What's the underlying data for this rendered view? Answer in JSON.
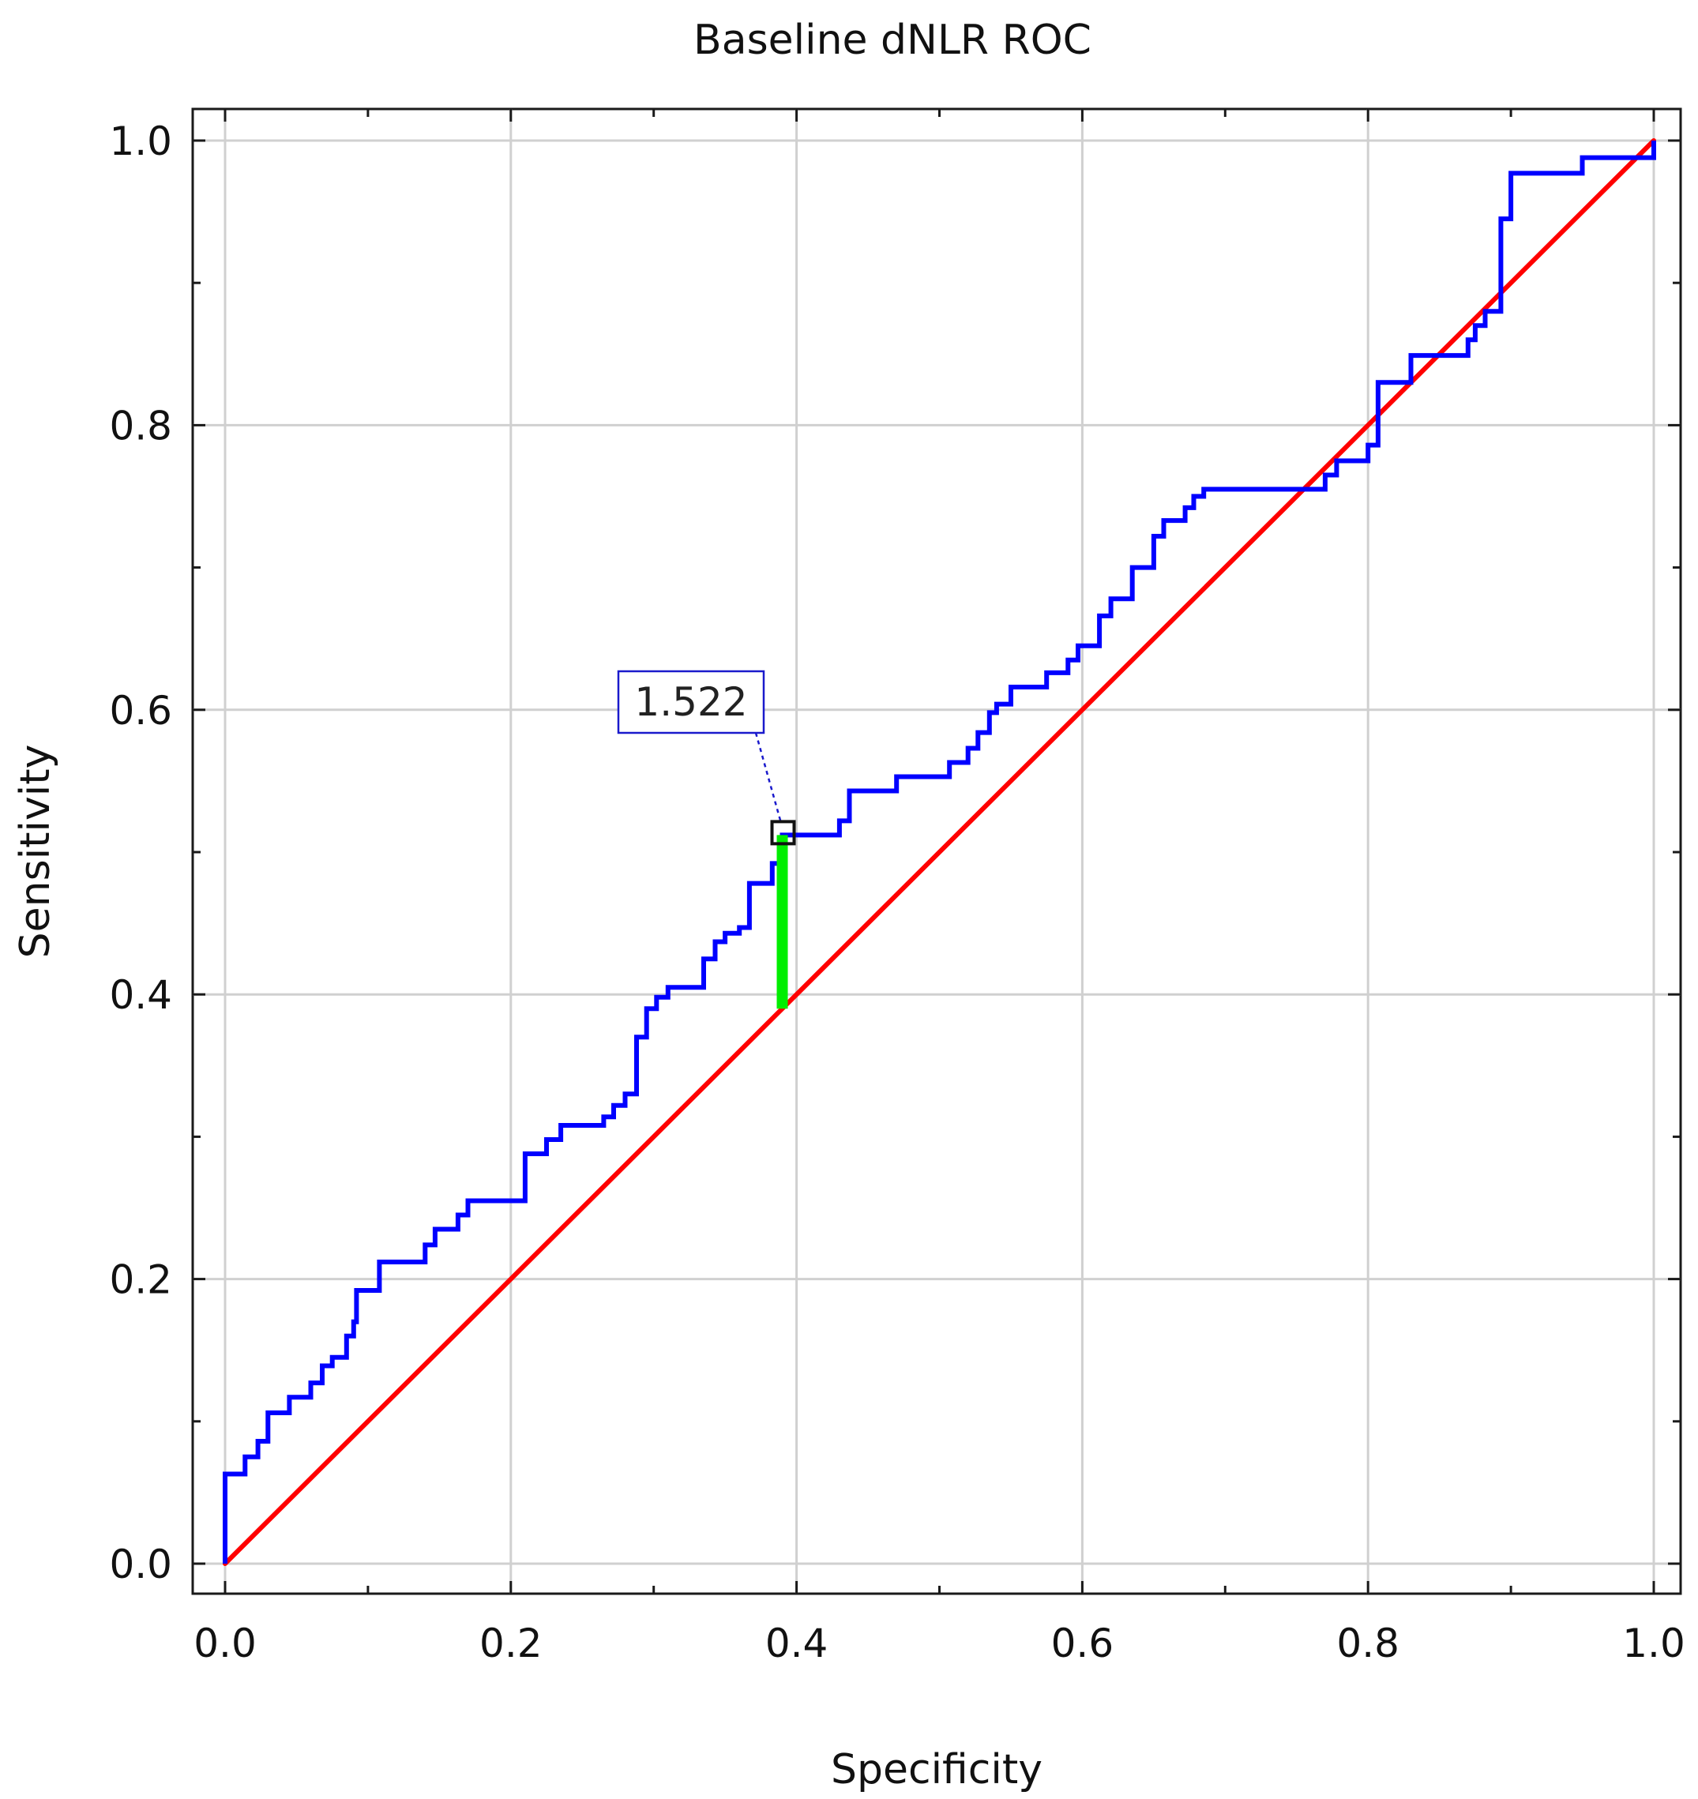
{
  "chart_data": {
    "type": "line",
    "title": "Baseline dNLR ROC",
    "xlabel": "Specificity",
    "ylabel": "Sensitivity",
    "xlim": [
      0,
      1
    ],
    "ylim": [
      0,
      1
    ],
    "xticks": [
      "0.0",
      "0.2",
      "0.4",
      "0.6",
      "0.8",
      "1.0"
    ],
    "yticks": [
      "0.0",
      "0.2",
      "0.4",
      "0.6",
      "0.8",
      "1.0"
    ],
    "grid": true,
    "colors": {
      "roc": "#0000ff",
      "diagonal": "#ff0000",
      "cutoff": "#00ee00",
      "annotation_border": "#1a1acc"
    },
    "annotation": {
      "label": "1.522",
      "x": 0.39,
      "y": 0.512
    },
    "cutoff_segment": {
      "x": 0.39,
      "y_from": 0.39,
      "y_to": 0.512
    },
    "diagonal": {
      "x": [
        0,
        1
      ],
      "y": [
        0,
        1
      ]
    },
    "series": [
      {
        "values": [
          [
            0.0,
            0.0
          ],
          [
            0.0,
            0.063
          ],
          [
            0.014,
            0.063
          ],
          [
            0.014,
            0.075
          ],
          [
            0.023,
            0.075
          ],
          [
            0.023,
            0.086
          ],
          [
            0.03,
            0.086
          ],
          [
            0.03,
            0.106
          ],
          [
            0.045,
            0.106
          ],
          [
            0.045,
            0.117
          ],
          [
            0.06,
            0.117
          ],
          [
            0.06,
            0.127
          ],
          [
            0.068,
            0.127
          ],
          [
            0.068,
            0.139
          ],
          [
            0.075,
            0.139
          ],
          [
            0.075,
            0.145
          ],
          [
            0.085,
            0.145
          ],
          [
            0.085,
            0.16
          ],
          [
            0.09,
            0.16
          ],
          [
            0.09,
            0.17
          ],
          [
            0.092,
            0.17
          ],
          [
            0.092,
            0.192
          ],
          [
            0.108,
            0.192
          ],
          [
            0.108,
            0.212
          ],
          [
            0.14,
            0.212
          ],
          [
            0.14,
            0.224
          ],
          [
            0.147,
            0.224
          ],
          [
            0.147,
            0.235
          ],
          [
            0.163,
            0.235
          ],
          [
            0.163,
            0.245
          ],
          [
            0.17,
            0.245
          ],
          [
            0.17,
            0.255
          ],
          [
            0.21,
            0.255
          ],
          [
            0.21,
            0.288
          ],
          [
            0.225,
            0.288
          ],
          [
            0.225,
            0.298
          ],
          [
            0.235,
            0.298
          ],
          [
            0.235,
            0.308
          ],
          [
            0.265,
            0.308
          ],
          [
            0.265,
            0.314
          ],
          [
            0.272,
            0.314
          ],
          [
            0.272,
            0.322
          ],
          [
            0.28,
            0.322
          ],
          [
            0.28,
            0.33
          ],
          [
            0.288,
            0.33
          ],
          [
            0.288,
            0.37
          ],
          [
            0.295,
            0.37
          ],
          [
            0.295,
            0.39
          ],
          [
            0.302,
            0.39
          ],
          [
            0.302,
            0.398
          ],
          [
            0.31,
            0.398
          ],
          [
            0.31,
            0.405
          ],
          [
            0.335,
            0.405
          ],
          [
            0.335,
            0.425
          ],
          [
            0.343,
            0.425
          ],
          [
            0.343,
            0.437
          ],
          [
            0.35,
            0.437
          ],
          [
            0.35,
            0.443
          ],
          [
            0.36,
            0.443
          ],
          [
            0.36,
            0.447
          ],
          [
            0.367,
            0.447
          ],
          [
            0.367,
            0.478
          ],
          [
            0.383,
            0.478
          ],
          [
            0.383,
            0.492
          ],
          [
            0.39,
            0.492
          ],
          [
            0.39,
            0.512
          ],
          [
            0.43,
            0.512
          ],
          [
            0.43,
            0.522
          ],
          [
            0.437,
            0.522
          ],
          [
            0.437,
            0.543
          ],
          [
            0.47,
            0.543
          ],
          [
            0.47,
            0.553
          ],
          [
            0.507,
            0.553
          ],
          [
            0.507,
            0.563
          ],
          [
            0.52,
            0.563
          ],
          [
            0.52,
            0.573
          ],
          [
            0.527,
            0.573
          ],
          [
            0.527,
            0.584
          ],
          [
            0.535,
            0.584
          ],
          [
            0.535,
            0.598
          ],
          [
            0.54,
            0.598
          ],
          [
            0.54,
            0.604
          ],
          [
            0.55,
            0.604
          ],
          [
            0.55,
            0.616
          ],
          [
            0.575,
            0.616
          ],
          [
            0.575,
            0.626
          ],
          [
            0.59,
            0.626
          ],
          [
            0.59,
            0.635
          ],
          [
            0.597,
            0.635
          ],
          [
            0.597,
            0.645
          ],
          [
            0.612,
            0.645
          ],
          [
            0.612,
            0.666
          ],
          [
            0.62,
            0.666
          ],
          [
            0.62,
            0.678
          ],
          [
            0.635,
            0.678
          ],
          [
            0.635,
            0.7
          ],
          [
            0.65,
            0.7
          ],
          [
            0.65,
            0.722
          ],
          [
            0.657,
            0.722
          ],
          [
            0.657,
            0.733
          ],
          [
            0.672,
            0.733
          ],
          [
            0.672,
            0.742
          ],
          [
            0.678,
            0.742
          ],
          [
            0.678,
            0.75
          ],
          [
            0.685,
            0.75
          ],
          [
            0.685,
            0.755
          ],
          [
            0.77,
            0.755
          ],
          [
            0.77,
            0.765
          ],
          [
            0.778,
            0.765
          ],
          [
            0.778,
            0.775
          ],
          [
            0.8,
            0.775
          ],
          [
            0.8,
            0.786
          ],
          [
            0.807,
            0.786
          ],
          [
            0.807,
            0.83
          ],
          [
            0.83,
            0.83
          ],
          [
            0.83,
            0.849
          ],
          [
            0.87,
            0.849
          ],
          [
            0.87,
            0.86
          ],
          [
            0.875,
            0.86
          ],
          [
            0.875,
            0.87
          ],
          [
            0.882,
            0.87
          ],
          [
            0.882,
            0.88
          ],
          [
            0.893,
            0.88
          ],
          [
            0.893,
            0.945
          ],
          [
            0.9,
            0.945
          ],
          [
            0.9,
            0.977
          ],
          [
            0.95,
            0.977
          ],
          [
            0.95,
            0.988
          ],
          [
            1.0,
            0.988
          ],
          [
            1.0,
            1.0
          ]
        ]
      }
    ]
  }
}
